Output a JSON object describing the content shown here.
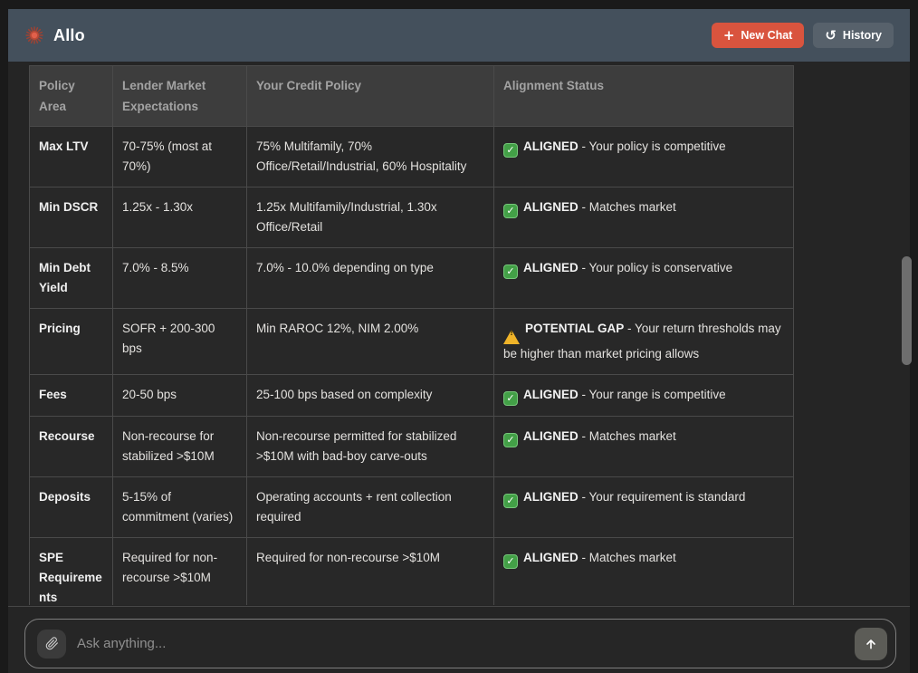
{
  "header": {
    "title": "Allo",
    "new_chat_label": "New Chat",
    "history_label": "History"
  },
  "table": {
    "columns": [
      "Policy Area",
      "Lender Market Expectations",
      "Your Credit Policy",
      "Alignment Status"
    ],
    "rows": [
      {
        "policy_area": "Max LTV",
        "market": "70-75% (most at 70%)",
        "policy": "75% Multifamily, 70% Office/Retail/Industrial, 60% Hospitality",
        "status": {
          "icon": "check",
          "label": "ALIGNED",
          "text": "- Your policy is competitive"
        }
      },
      {
        "policy_area": "Min DSCR",
        "market": "1.25x - 1.30x",
        "policy": "1.25x Multifamily/Industrial, 1.30x Office/Retail",
        "status": {
          "icon": "check",
          "label": "ALIGNED",
          "text": "- Matches market"
        }
      },
      {
        "policy_area": "Min Debt Yield",
        "market": "7.0% - 8.5%",
        "policy": "7.0% - 10.0% depending on type",
        "status": {
          "icon": "check",
          "label": "ALIGNED",
          "text": "- Your policy is conservative"
        }
      },
      {
        "policy_area": "Pricing",
        "market": "SOFR + 200-300 bps",
        "policy": "Min RAROC 12%, NIM 2.00%",
        "status": {
          "icon": "warning",
          "label": "POTENTIAL GAP",
          "text": "- Your return thresholds may be higher than market pricing allows"
        }
      },
      {
        "policy_area": "Fees",
        "market": "20-50 bps",
        "policy": "25-100 bps based on complexity",
        "status": {
          "icon": "check",
          "label": "ALIGNED",
          "text": "- Your range is competitive"
        }
      },
      {
        "policy_area": "Recourse",
        "market": "Non-recourse for stabilized >$10M",
        "policy": "Non-recourse permitted for stabilized >$10M with bad-boy carve-outs",
        "status": {
          "icon": "check",
          "label": "ALIGNED",
          "text": "- Matches market"
        }
      },
      {
        "policy_area": "Deposits",
        "market": "5-15% of commitment (varies)",
        "policy": "Operating accounts + rent collection required",
        "status": {
          "icon": "check",
          "label": "ALIGNED",
          "text": "- Your requirement is standard"
        }
      },
      {
        "policy_area": "SPE Requirements",
        "market": "Required for non-recourse >$10M",
        "policy": "Required for non-recourse >$10M",
        "status": {
          "icon": "check",
          "label": "ALIGNED",
          "text": "- Matches market"
        }
      }
    ]
  },
  "composer": {
    "placeholder": "Ask anything..."
  },
  "colors": {
    "accent": "#d9543e",
    "top_bar": "#44505c",
    "status_green": "#43a047",
    "status_warning": "#f0b429"
  }
}
